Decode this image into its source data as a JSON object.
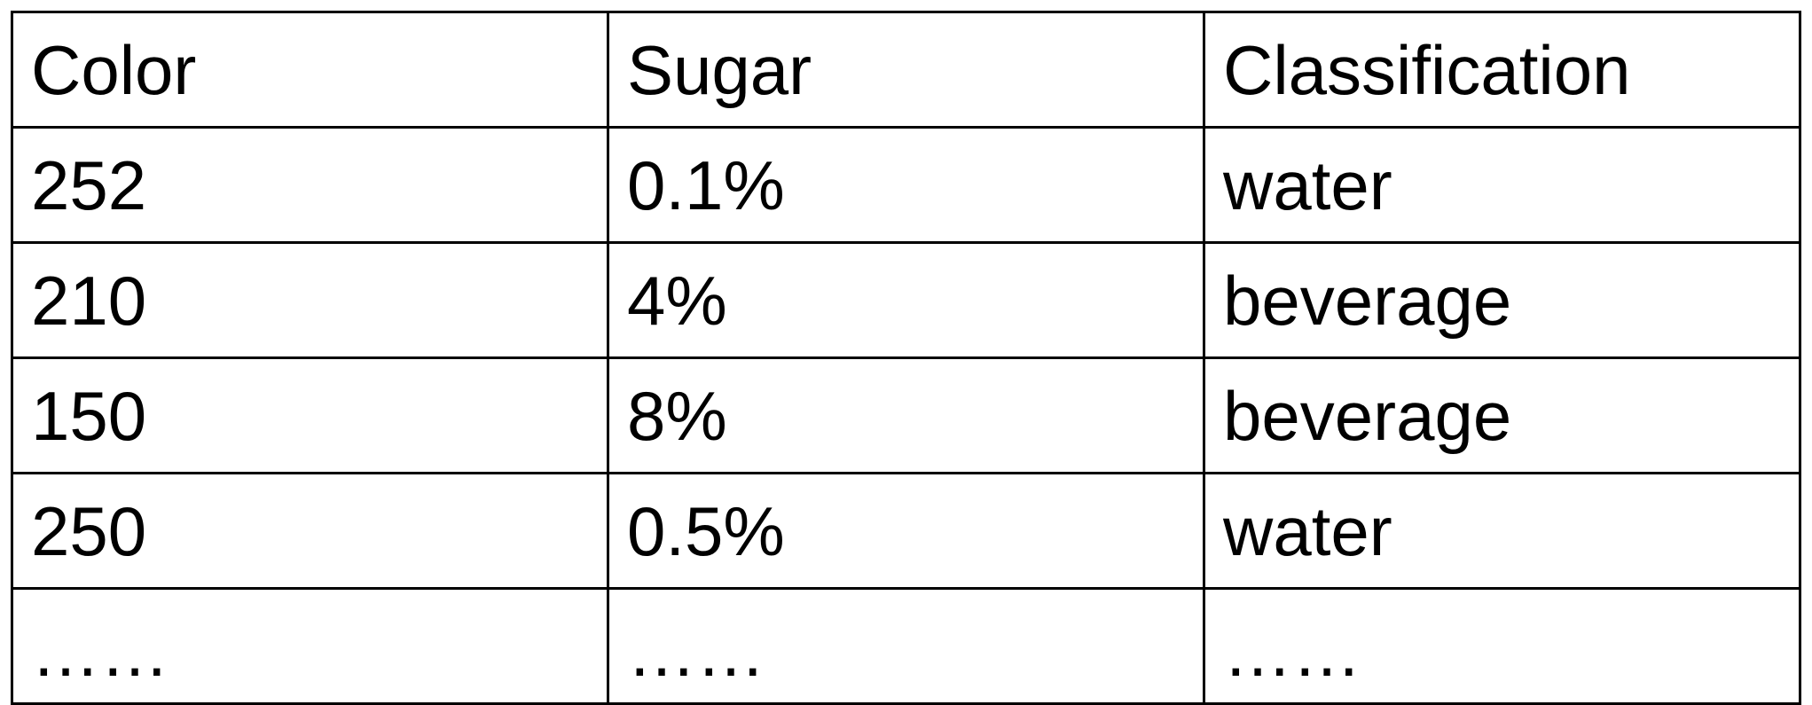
{
  "table": {
    "columns": [
      "Color",
      "Sugar",
      "Classification"
    ],
    "rows": [
      [
        "252",
        "0.1%",
        "water"
      ],
      [
        "210",
        "4%",
        "beverage"
      ],
      [
        "150",
        "8%",
        "beverage"
      ],
      [
        "250",
        "0.5%",
        "water"
      ],
      [
        "……",
        "……",
        "……"
      ]
    ]
  }
}
